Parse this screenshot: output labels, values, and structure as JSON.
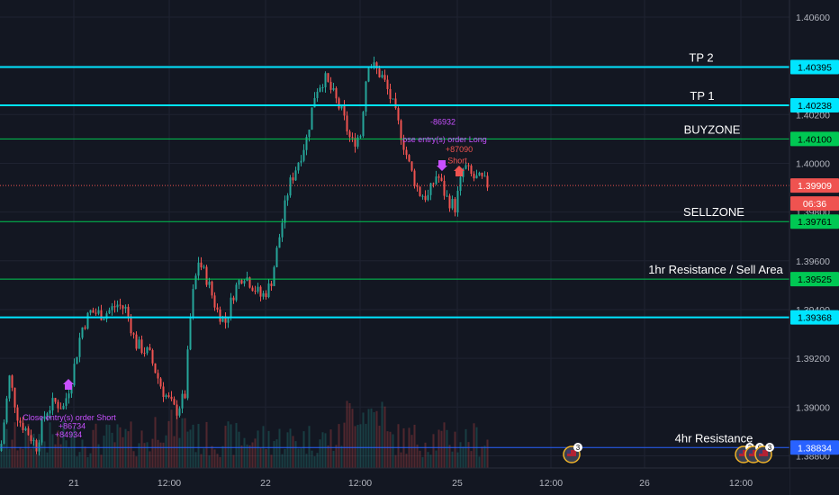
{
  "colors": {
    "background": "#131722",
    "grid": "#1f2331",
    "up": "#26a69a",
    "down": "#ef5350",
    "cyan": "#00e5ff",
    "green": "#00c853",
    "blue": "#2962ff",
    "marker": "#c850ff"
  },
  "chart_data": {
    "type": "candlestick",
    "ylim": [
      1.3875,
      1.4067
    ],
    "y_ticks": [
      "1.40600",
      "1.40400",
      "1.40200",
      "1.40000",
      "1.39800",
      "1.39600",
      "1.39400",
      "1.39200",
      "1.39000",
      "1.38800"
    ],
    "x_ticks": [
      "21",
      "12:00",
      "22",
      "12:00",
      "25",
      "12:00",
      "26",
      "12:00"
    ],
    "hlines": [
      {
        "name": "TP 2",
        "price": 1.40395,
        "price_label": "1.40395",
        "color": "#00e5ff",
        "width": 2
      },
      {
        "name": "TP 1",
        "price": 1.40238,
        "price_label": "1.40238",
        "color": "#00e5ff",
        "width": 2
      },
      {
        "name": "BUYZONE",
        "price": 1.401,
        "price_label": "1.40100",
        "color": "#00c853",
        "width": 1
      },
      {
        "name": "SELLZONE",
        "price": 1.39761,
        "price_label": "1.39761",
        "color": "#00c853",
        "width": 1
      },
      {
        "name": "1hr Resistance / Sell Area",
        "price": 1.39525,
        "price_label": "1.39525",
        "color": "#00c853",
        "width": 1
      },
      {
        "name": "",
        "price": 1.39368,
        "price_label": "1.39368",
        "color": "#00e5ff",
        "width": 2
      },
      {
        "name": "4hr Resistance",
        "price": 1.38834,
        "price_label": "1.38834",
        "color": "#2962ff",
        "width": 1
      }
    ],
    "last_price": {
      "price": 1.39909,
      "label": "1.39909",
      "countdown": "06:36",
      "color": "#ef5350"
    },
    "price_path": [
      [
        0,
        1.3882
      ],
      [
        10,
        1.3912
      ],
      [
        20,
        1.3895
      ],
      [
        30,
        1.389
      ],
      [
        40,
        1.3884
      ],
      [
        50,
        1.3898
      ],
      [
        60,
        1.3902
      ],
      [
        70,
        1.39
      ],
      [
        80,
        1.3913
      ],
      [
        90,
        1.3932
      ],
      [
        100,
        1.3939
      ],
      [
        115,
        1.3938
      ],
      [
        130,
        1.3942
      ],
      [
        140,
        1.394
      ],
      [
        150,
        1.3926
      ],
      [
        165,
        1.3922
      ],
      [
        180,
        1.3907
      ],
      [
        195,
        1.3898
      ],
      [
        205,
        1.3905
      ],
      [
        212,
        1.3942
      ],
      [
        220,
        1.396
      ],
      [
        230,
        1.3952
      ],
      [
        240,
        1.394
      ],
      [
        250,
        1.3935
      ],
      [
        260,
        1.3948
      ],
      [
        270,
        1.3955
      ],
      [
        280,
        1.395
      ],
      [
        290,
        1.3945
      ],
      [
        300,
        1.395
      ],
      [
        310,
        1.397
      ],
      [
        320,
        1.399
      ],
      [
        330,
        1.4
      ],
      [
        340,
        1.401
      ],
      [
        350,
        1.403
      ],
      [
        360,
        1.4035
      ],
      [
        370,
        1.4028
      ],
      [
        380,
        1.402
      ],
      [
        390,
        1.4008
      ],
      [
        400,
        1.4012
      ],
      [
        408,
        1.4042
      ],
      [
        416,
        1.4039
      ],
      [
        425,
        1.4035
      ],
      [
        435,
        1.4025
      ],
      [
        445,
        1.4012
      ],
      [
        455,
        1.3998
      ],
      [
        465,
        1.3988
      ],
      [
        475,
        1.3986
      ],
      [
        485,
        1.3996
      ],
      [
        495,
        1.3986
      ],
      [
        505,
        1.3982
      ],
      [
        515,
        1.3999
      ],
      [
        525,
        1.3994
      ],
      [
        535,
        1.3993
      ],
      [
        542,
        1.3991
      ]
    ],
    "volume_max": 1.0,
    "annotations": [
      {
        "text": "-86932",
        "x": 492,
        "price": 1.40158,
        "color": "#c850ff"
      },
      {
        "text": "ose entry(s) order Long",
        "x": 494,
        "price": 1.40086,
        "color": "#c850ff"
      },
      {
        "text": "+87090",
        "x": 510,
        "price": 1.40046,
        "color": "#ef5350"
      },
      {
        "text": "Short",
        "x": 508,
        "price": 1.4,
        "color": "#ef5350"
      },
      {
        "text": "Close entry(s) order Short",
        "x": 77,
        "price": 1.38945,
        "color": "#c850ff"
      },
      {
        "text": "+86734",
        "x": 80,
        "price": 1.3891,
        "color": "#c850ff"
      },
      {
        "text": "+84934",
        "x": 76,
        "price": 1.38875,
        "color": "#c850ff"
      }
    ],
    "event_badges": [
      {
        "x": 635,
        "count": "3"
      },
      {
        "x": 826,
        "count": "2"
      },
      {
        "x": 837,
        "count": "6"
      },
      {
        "x": 848,
        "count": "3"
      }
    ]
  }
}
